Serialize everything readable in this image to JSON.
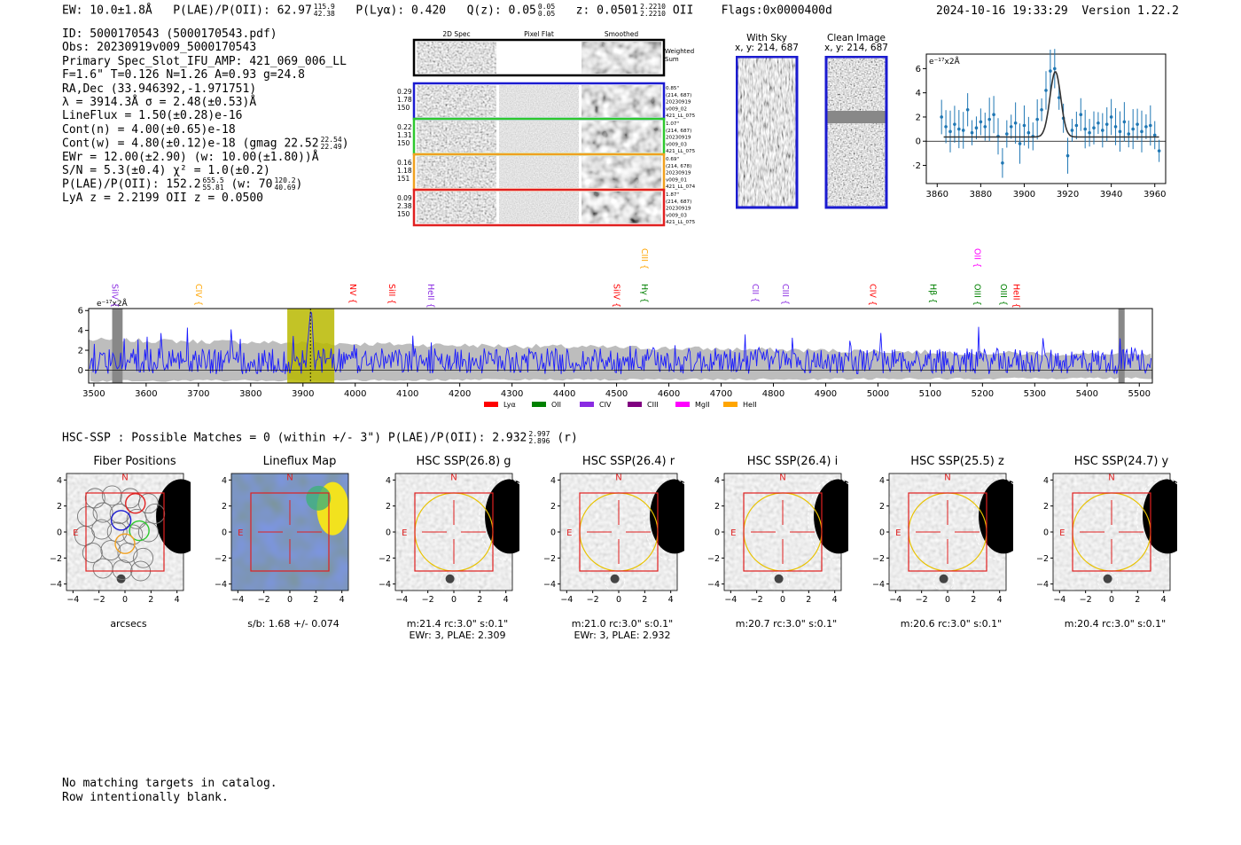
{
  "header": {
    "ew": "EW: 10.0±1.8Å",
    "plae_prefix": "P(LAE)/P(OII): 62.97",
    "plae_hi": "115.9",
    "plae_lo": "42.38",
    "plya": "P(Lyα): 0.420",
    "qz_prefix": "Q(z): 0.05",
    "qz_hi": "0.05",
    "qz_lo": "0.05",
    "z_prefix": "z: 0.0501",
    "z_hi": "2.2210",
    "z_lo": "2.2210",
    "z_suffix": "OII",
    "flags": "Flags:0x0000400d",
    "timestamp": "2024-10-16 19:33:29",
    "version": "Version 1.22.2"
  },
  "info": {
    "id": "ID: 5000170543 (5000170543.pdf)",
    "obs": "Obs: 20230919v009_5000170543",
    "primary": "Primary Spec_Slot_IFU_AMP: 421_069_006_LL",
    "params": "F=1.6\"  T=0.126  N=1.26  A=0.93  g=24.8",
    "radec": "RA,Dec (33.946392,-1.971751)",
    "lambda": "λ = 3914.3Å  σ = 2.48(±0.53)Å",
    "lineflux": "LineFlux = 1.50(±0.28)e-16",
    "contn": "Cont(n) = 4.00(±0.65)e-18",
    "contw_prefix": "Cont(w) = 4.80(±0.12)e-18 (gmag 22.52",
    "gmag_hi": "22.54",
    "gmag_lo": "22.49",
    "contw_suffix": ")",
    "ewr": "EWr = 12.00(±2.90) (w: 10.00(±1.80))Å",
    "sn": "S/N = 5.3(±0.4)  χ² = 1.0(±0.2)",
    "plae_prefix": "P(LAE)/P(OII): 152.2",
    "plae_hi": "655.5",
    "plae_lo": "55.81",
    "plae_w": "(w: 70",
    "plae_w_hi": "120.2",
    "plae_w_lo": "40.69",
    "plae_w_suffix": ")",
    "lyaz": "LyA z = 2.2199  OII z = 0.0500"
  },
  "cutouts": {
    "col_2d": "2D Spec",
    "col_flat": "Pixel Flat",
    "col_smooth": "Smoothed",
    "weighted": "Weighted",
    "sum": "Sum",
    "rows": [
      {
        "l1": "0.29",
        "l2": "1.78",
        "l3": "150",
        "r1": "0.85\"",
        "r2": "(214, 687)",
        "r3": "20230919",
        "r4": "v009_02",
        "r5": "421_LL_075",
        "color": "#1b1bd0"
      },
      {
        "l1": "0.22",
        "l2": "1.31",
        "l3": "150",
        "r1": "1.07\"",
        "r2": "(214, 687)",
        "r3": "20230919",
        "r4": "v009_03",
        "r5": "421_LL_075",
        "color": "#2ec82e"
      },
      {
        "l1": "0.16",
        "l2": "1.18",
        "l3": "151",
        "r1": "0.69\"",
        "r2": "(214, 678)",
        "r3": "20230919",
        "r4": "v009_01",
        "r5": "421_LL_074",
        "color": "#f0a020"
      },
      {
        "l1": "0.09",
        "l2": "2.38",
        "l3": "150",
        "r1": "1.87\"",
        "r2": "(214, 687)",
        "r3": "20230919",
        "r4": "v009_03",
        "r5": "421_LL_075",
        "color": "#e02020"
      }
    ]
  },
  "sky": {
    "with_sky": "With Sky",
    "with_sky_xy": "x, y: 214, 687",
    "clean": "Clean Image",
    "clean_xy": "x, y: 214, 687"
  },
  "labels": {
    "flux_unit": "e⁻¹⁷x2Å",
    "hsc_line_prefix": "HSC-SSP : Possible Matches = 0 (within +/- 3\")  P(LAE)/P(OII): 2.932",
    "hsc_hi": "2.997",
    "hsc_lo": "2.896",
    "hsc_suffix": "(r)",
    "footer1": "No matching targets in catalog.",
    "footer2": "Row intentionally blank.",
    "compass_n": "N",
    "compass_e": "E"
  },
  "lines_legend": [
    {
      "name": "Lyα",
      "color": "#ff0000"
    },
    {
      "name": "OII",
      "color": "#008000"
    },
    {
      "name": "CIV",
      "color": "#8a2be2"
    },
    {
      "name": "CIII",
      "color": "#800080"
    },
    {
      "name": "MgII",
      "color": "#ff00ff"
    },
    {
      "name": "HeII",
      "color": "#ffa500"
    }
  ],
  "thumbnails": [
    {
      "title": "Fiber Positions",
      "sub1": "arcsecs",
      "sub2": ""
    },
    {
      "title": "Lineflux Map",
      "sub1": "s/b: 1.68 +/- 0.074",
      "sub2": ""
    },
    {
      "title": "HSC SSP(26.8) g",
      "sub1": "m:21.4 rc:3.0\"  s:0.1\"",
      "sub2": "EWr: 3, PLAE: 2.309"
    },
    {
      "title": "HSC SSP(26.4) r",
      "sub1": "m:21.0 rc:3.0\"  s:0.1\"",
      "sub2": "EWr: 3, PLAE: 2.932"
    },
    {
      "title": "HSC SSP(26.4) i",
      "sub1": "m:20.7 rc:3.0\"  s:0.1\"",
      "sub2": ""
    },
    {
      "title": "HSC SSP(25.5) z",
      "sub1": "m:20.6 rc:3.0\"  s:0.1\"",
      "sub2": ""
    },
    {
      "title": "HSC SSP(24.7) y",
      "sub1": "m:20.4 rc:3.0\"  s:0.1\"",
      "sub2": ""
    }
  ],
  "chart_data": [
    {
      "type": "line",
      "title": "Zoomed emission line fit",
      "ylabel": "e⁻¹⁷x2Å",
      "xlim": [
        3855,
        3965
      ],
      "ylim": [
        -3.5,
        7.2
      ],
      "xticks": [
        "3860",
        "3880",
        "3900",
        "3920",
        "3940",
        "3960"
      ],
      "yticks": [
        "-2",
        "0",
        "2",
        "4",
        "6"
      ],
      "x": [
        3862,
        3864,
        3866,
        3868,
        3870,
        3872,
        3874,
        3876,
        3878,
        3880,
        3882,
        3884,
        3886,
        3888,
        3890,
        3892,
        3894,
        3896,
        3898,
        3900,
        3902,
        3904,
        3906,
        3908,
        3910,
        3912,
        3914,
        3916,
        3918,
        3920,
        3922,
        3924,
        3926,
        3928,
        3930,
        3932,
        3934,
        3936,
        3938,
        3940,
        3942,
        3944,
        3946,
        3948,
        3950,
        3952,
        3954,
        3956,
        3958,
        3960,
        3962
      ],
      "y": [
        2.0,
        1.2,
        0.8,
        1.4,
        1.0,
        0.9,
        2.6,
        0.7,
        1.1,
        1.6,
        1.2,
        1.8,
        2.2,
        0.4,
        -1.8,
        0.6,
        1.2,
        1.5,
        -0.2,
        1.3,
        0.7,
        0.4,
        1.8,
        2.6,
        4.2,
        5.8,
        6.0,
        3.6,
        1.9,
        -1.2,
        0.9,
        1.3,
        2.2,
        1.0,
        0.7,
        1.1,
        1.5,
        0.9,
        1.4,
        2.0,
        1.2,
        0.8,
        1.6,
        0.6,
        1.0,
        1.4,
        0.8,
        1.2,
        1.3,
        0.5,
        -0.8
      ],
      "fit": {
        "amplitude": 5.4,
        "center": 3914.3,
        "sigma": 2.48,
        "continuum": 0.35
      }
    },
    {
      "type": "line",
      "title": "Full spectrum",
      "ylabel": "e⁻¹⁷x2Å",
      "xlim": [
        3490,
        5525
      ],
      "ylim": [
        -1.3,
        6.2
      ],
      "xticks": [
        "3500",
        "3600",
        "3700",
        "3800",
        "3900",
        "4000",
        "4100",
        "4200",
        "4300",
        "4400",
        "4500",
        "4600",
        "4700",
        "4800",
        "4900",
        "5000",
        "5100",
        "5200",
        "5300",
        "5400",
        "5500"
      ],
      "yticks": [
        "0",
        "2",
        "4",
        "6"
      ],
      "highlight_range": [
        3870,
        3960
      ],
      "line_center": 3914.3,
      "masked": [
        [
          3535,
          3555
        ],
        [
          5460,
          5472
        ]
      ],
      "emission_lines": [
        {
          "name": "SiIV",
          "wave": 3540,
          "color": "#8a2be2",
          "level": 1
        },
        {
          "name": "CIV",
          "wave": 3700,
          "color": "#ffa500",
          "level": 1
        },
        {
          "name": "NV",
          "wave": 3995,
          "color": "#ff0000",
          "level": 1
        },
        {
          "name": "SiII",
          "wave": 4070,
          "color": "#ff0000",
          "level": 1
        },
        {
          "name": "HeII",
          "wave": 4145,
          "color": "#8a2be2",
          "level": 1
        },
        {
          "name": "SiIV",
          "wave": 4500,
          "color": "#ff0000",
          "level": 1
        },
        {
          "name": "CIII",
          "wave": 4553,
          "color": "#ffa500",
          "level": 2
        },
        {
          "name": "Hγ",
          "wave": 4553,
          "color": "#008000",
          "level": 1
        },
        {
          "name": "CII",
          "wave": 4765,
          "color": "#8a2be2",
          "level": 1
        },
        {
          "name": "CIII",
          "wave": 4823,
          "color": "#8a2be2",
          "level": 1
        },
        {
          "name": "CIV",
          "wave": 4990,
          "color": "#ff0000",
          "level": 1
        },
        {
          "name": "Hβ",
          "wave": 5105,
          "color": "#008000",
          "level": 1
        },
        {
          "name": "OII",
          "wave": 5190,
          "color": "#ff00ff",
          "level": 2
        },
        {
          "name": "OIII",
          "wave": 5190,
          "color": "#008000",
          "level": 1
        },
        {
          "name": "OIII",
          "wave": 5240,
          "color": "#008000",
          "level": 1
        },
        {
          "name": "HeII",
          "wave": 5265,
          "color": "#ff0000",
          "level": 1
        }
      ]
    }
  ]
}
